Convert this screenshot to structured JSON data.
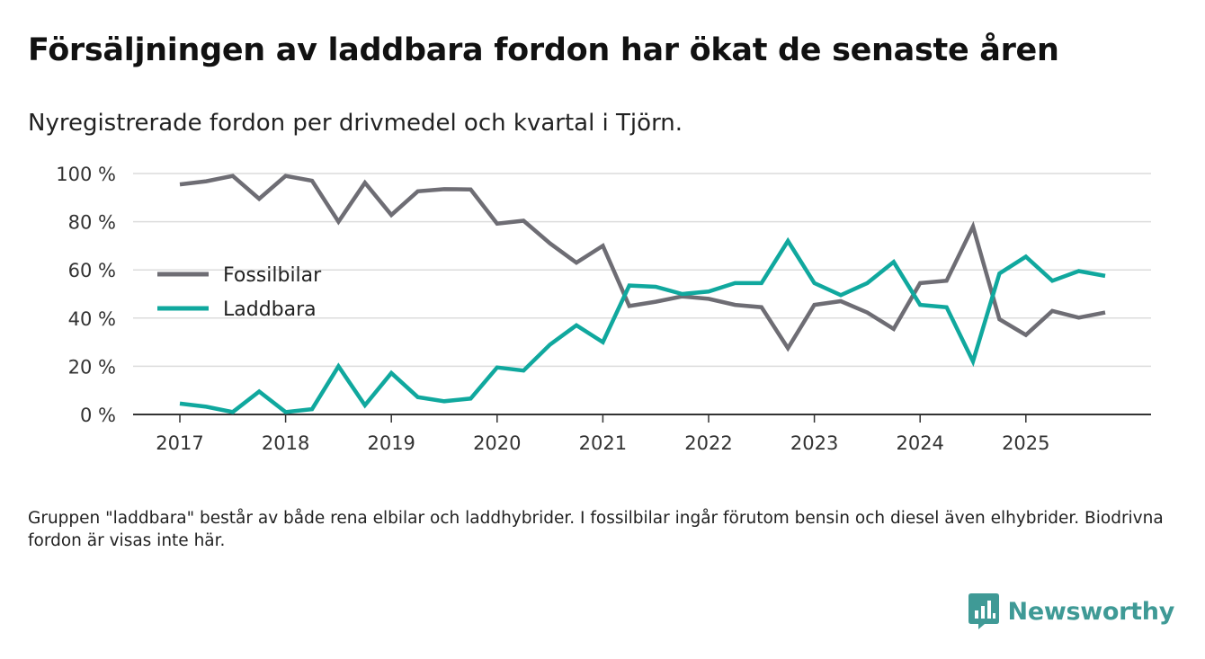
{
  "title": "Försäljningen av laddbara fordon har ökat de senaste åren",
  "subtitle": "Nyregistrerade fordon per drivmedel och kvartal i Tjörn.",
  "footnote": "Gruppen \"laddbara\" består av både rena elbilar och laddhybrider. I fossilbilar ingår förutom bensin och diesel även elhybrider. Biodrivna fordon är visas inte här.",
  "brand": {
    "name": "Newsworthy",
    "icon": "newsworthy-logo-icon",
    "color": "#3f9a96"
  },
  "chart_data": {
    "type": "line",
    "title": "Försäljningen av laddbara fordon har ökat de senaste åren",
    "xlabel": "",
    "ylabel": "",
    "ylim": [
      0,
      100
    ],
    "yticks": [
      0,
      20,
      40,
      60,
      80,
      100
    ],
    "ytick_labels": [
      "0 %",
      "20 %",
      "40 %",
      "60 %",
      "80 %",
      "100 %"
    ],
    "xticks": [
      2017,
      2018,
      2019,
      2020,
      2021,
      2022,
      2023,
      2024,
      2025
    ],
    "x_start": 2017,
    "x_step": 0.25,
    "grid": true,
    "legend_position": "center-left",
    "series": [
      {
        "name": "Fossilbilar",
        "color": "#6e6d74",
        "values": [
          95.5,
          96.8,
          99.0,
          89.5,
          99.0,
          97.0,
          80.0,
          96.2,
          82.8,
          92.6,
          93.5,
          93.4,
          79.2,
          80.4,
          71.0,
          63.0,
          70.0,
          45.0,
          46.8,
          49.0,
          48.0,
          45.5,
          44.5,
          27.5,
          45.5,
          47.0,
          42.3,
          35.5,
          54.5,
          55.5,
          78.0,
          39.5,
          33.0,
          43.0,
          40.2,
          42.3
        ]
      },
      {
        "name": "Laddbara",
        "color": "#10a89e",
        "values": [
          4.5,
          3.2,
          1.0,
          9.5,
          1.0,
          2.2,
          20.0,
          3.8,
          17.2,
          7.2,
          5.5,
          6.6,
          19.5,
          18.2,
          29.0,
          37.0,
          30.0,
          53.5,
          53.0,
          50.0,
          51.0,
          54.5,
          54.5,
          72.0,
          54.5,
          49.5,
          54.5,
          63.3,
          45.5,
          44.5,
          22.0,
          58.5,
          65.5,
          55.5,
          59.5,
          57.5
        ]
      }
    ]
  }
}
